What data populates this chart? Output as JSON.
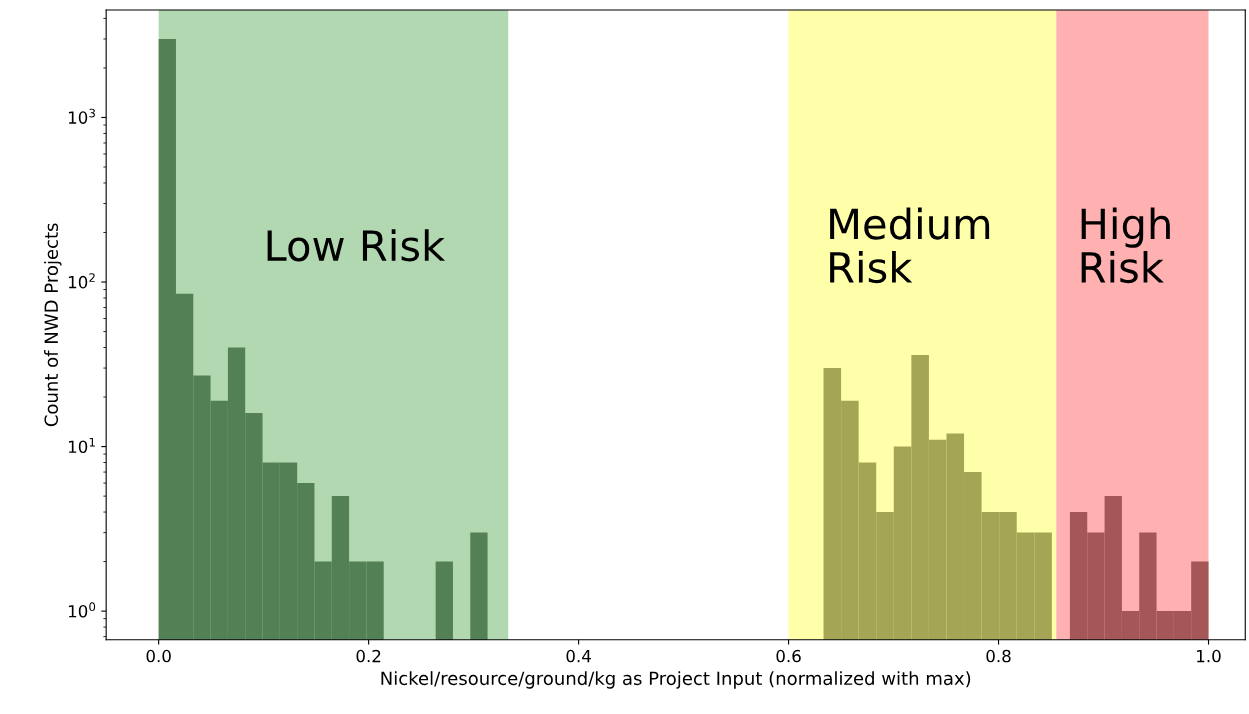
{
  "chart_data": {
    "type": "histogram",
    "xlabel": "Nickel/resource/ground/kg as Project Input (normalized with max)",
    "ylabel": "Count of NWD Projects",
    "log": "y",
    "grid": false,
    "xlim": [
      -0.05,
      1.035
    ],
    "xticks": [
      {
        "value": 0,
        "label": "0.0"
      },
      {
        "value": 0.2,
        "label": "0.2"
      },
      {
        "value": 0.4,
        "label": "0.4"
      },
      {
        "value": 0.6,
        "label": "0.6"
      },
      {
        "value": 0.8,
        "label": "0.8"
      },
      {
        "value": 1,
        "label": "1.0"
      }
    ],
    "ylim": [
      0.67,
      4500
    ],
    "yticks": [
      {
        "value": 1,
        "label": "10$^{0}$"
      },
      {
        "value": 10,
        "label": "10$^{1}$"
      },
      {
        "value": 100,
        "label": "10$^{2}$"
      },
      {
        "value": 1000,
        "label": "10$^{3}$"
      }
    ],
    "bins": [
      0,
      0.01649,
      0.03298,
      0.04947,
      0.06596,
      0.08245,
      0.09894,
      0.11543,
      0.13192,
      0.14841,
      0.1649,
      0.18139,
      0.19788,
      0.21437,
      0.26384,
      0.28033,
      0.29682,
      0.31331,
      0.6333,
      0.65003,
      0.66676,
      0.68349,
      0.70022,
      0.71695,
      0.73368,
      0.75041,
      0.76714,
      0.78387,
      0.8006,
      0.81733,
      0.83406,
      0.85079,
      0.868,
      0.8845,
      0.901,
      0.9175,
      0.934,
      0.9505,
      0.967,
      0.9835,
      1.0
    ],
    "values": [
      3000,
      85,
      27,
      19,
      40,
      16,
      8,
      8,
      6,
      2,
      5,
      2,
      2,
      null,
      2,
      null,
      3,
      null,
      30,
      19,
      8,
      4,
      10,
      36,
      11,
      12,
      7,
      4,
      4,
      3,
      3,
      null,
      4,
      3,
      5,
      1,
      3,
      1,
      1,
      2
    ],
    "colors": [
      "#548056",
      "#548056",
      "#548056",
      "#548056",
      "#548056",
      "#548056",
      "#548056",
      "#548056",
      "#548056",
      "#548056",
      "#548056",
      "#548056",
      "#548056",
      "#548056",
      "#548056",
      "#548056",
      "#548056",
      "#548056",
      "#a5a556",
      "#a5a556",
      "#a5a556",
      "#a5a556",
      "#a5a556",
      "#a5a556",
      "#a5a556",
      "#a5a556",
      "#a5a556",
      "#a5a556",
      "#a5a556",
      "#a5a556",
      "#a5a556",
      "#a5a556",
      "#a55757",
      "#a55757",
      "#a55757",
      "#a55757",
      "#a55757",
      "#a55757",
      "#a55757",
      "#a55757"
    ],
    "bands": [
      {
        "axis": "x",
        "from": 0,
        "to": 0.333,
        "color": "#b2d8b2"
      },
      {
        "axis": "x",
        "from": 0.6,
        "to": 0.855,
        "color": "#ffffaa"
      },
      {
        "axis": "x",
        "from": 0.855,
        "to": 1.0,
        "color": "#ffb0b0"
      }
    ],
    "annotations": [
      "Low Risk",
      "Medium\nRisk",
      "High\nRisk"
    ]
  }
}
